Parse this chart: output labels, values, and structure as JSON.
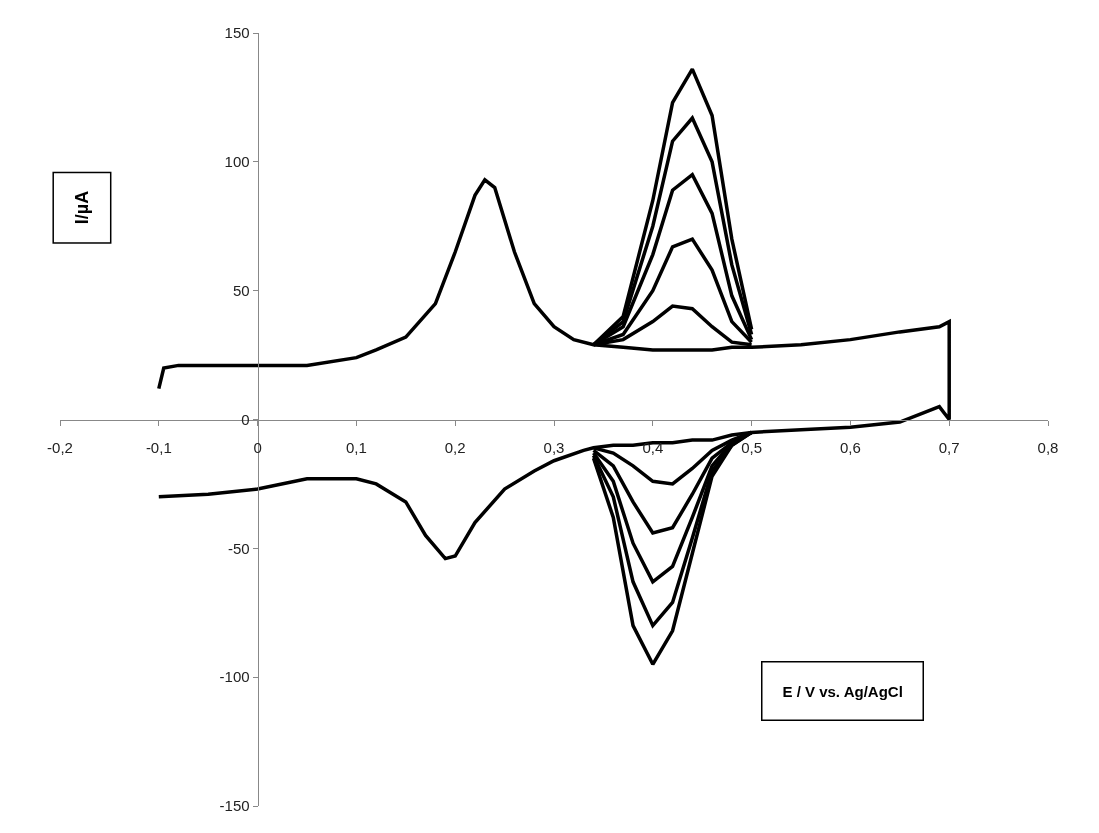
{
  "chart_data": {
    "type": "line",
    "xlabel": "E / V vs. Ag/AgCl",
    "ylabel": "I/µA",
    "xlim": [
      -0.2,
      0.8
    ],
    "xticks": [
      {
        "value": -0.2,
        "label": "-0,2"
      },
      {
        "value": -0.1,
        "label": "-0,1"
      },
      0,
      {
        "value": 0.1,
        "label": "0,1"
      },
      {
        "value": 0.2,
        "label": "0,2"
      },
      {
        "value": 0.3,
        "label": "0,3"
      },
      {
        "value": 0.4,
        "label": "0,4"
      },
      {
        "value": 0.5,
        "label": "0,5"
      },
      {
        "value": 0.6,
        "label": "0,6"
      },
      {
        "value": 0.7,
        "label": "0,7"
      },
      {
        "value": 0.8,
        "label": "0,8"
      }
    ],
    "ylim": [
      -150,
      150
    ],
    "yticks": [
      -150,
      -100,
      -50,
      0,
      50,
      100,
      150
    ],
    "marker": "none",
    "line_style": "solid",
    "series": [
      {
        "color": "#000000",
        "x": [
          -0.1,
          -0.095,
          -0.08,
          -0.05,
          0,
          0.05,
          0.1,
          0.12,
          0.15,
          0.18,
          0.2,
          0.22,
          0.23,
          0.24,
          0.26,
          0.28,
          0.3,
          0.32,
          0.34,
          0.37,
          0.4,
          0.42,
          0.44,
          0.46,
          0.48,
          0.5,
          0.55,
          0.6,
          0.65,
          0.69,
          0.7,
          0.7,
          0.69,
          0.67,
          0.65,
          0.6,
          0.55,
          0.5,
          0.48,
          0.46,
          0.44,
          0.42,
          0.4,
          0.38,
          0.36,
          0.34,
          0.33,
          0.3,
          0.28,
          0.25,
          0.22,
          0.2,
          0.19,
          0.17,
          0.15,
          0.12,
          0.1,
          0.05,
          0,
          -0.05,
          -0.1
        ],
        "values": [
          12,
          20,
          21,
          21,
          21,
          21,
          24,
          27,
          32,
          45,
          65,
          87,
          93,
          90,
          65,
          45,
          36,
          31,
          29,
          28,
          27,
          27,
          27,
          27,
          28,
          28,
          29,
          31,
          34,
          36,
          38,
          0,
          5,
          2,
          -1,
          -3,
          -4,
          -5,
          -6,
          -8,
          -8,
          -9,
          -9,
          -10,
          -10,
          -11,
          -12,
          -16,
          -20,
          -27,
          -40,
          -53,
          -54,
          -45,
          -32,
          -25,
          -23,
          -23,
          -27,
          -29,
          -30
        ]
      },
      {
        "color": "#000000",
        "x": [
          0.34,
          0.37,
          0.4,
          0.42,
          0.44,
          0.46,
          0.48,
          0.5
        ],
        "values": [
          29,
          31,
          38,
          44,
          43,
          36,
          30,
          29
        ]
      },
      {
        "color": "#000000",
        "x": [
          0.34,
          0.37,
          0.4,
          0.42,
          0.44,
          0.46,
          0.48,
          0.5
        ],
        "values": [
          29,
          33,
          50,
          67,
          70,
          58,
          38,
          30
        ]
      },
      {
        "color": "#000000",
        "x": [
          0.34,
          0.37,
          0.4,
          0.42,
          0.44,
          0.46,
          0.48,
          0.5
        ],
        "values": [
          29,
          36,
          64,
          89,
          95,
          80,
          48,
          31
        ]
      },
      {
        "color": "#000000",
        "x": [
          0.34,
          0.37,
          0.4,
          0.42,
          0.44,
          0.46,
          0.48,
          0.5
        ],
        "values": [
          29,
          38,
          75,
          108,
          117,
          100,
          60,
          33
        ]
      },
      {
        "color": "#000000",
        "x": [
          0.34,
          0.37,
          0.4,
          0.42,
          0.44,
          0.46,
          0.48,
          0.5
        ],
        "values": [
          29,
          40,
          85,
          123,
          136,
          118,
          70,
          35
        ]
      },
      {
        "color": "#000000",
        "x": [
          0.5,
          0.48,
          0.46,
          0.44,
          0.42,
          0.4,
          0.38,
          0.36,
          0.34
        ],
        "values": [
          -5,
          -8,
          -12,
          -19,
          -25,
          -24,
          -18,
          -13,
          -11
        ]
      },
      {
        "color": "#000000",
        "x": [
          0.5,
          0.48,
          0.46,
          0.44,
          0.42,
          0.4,
          0.38,
          0.36,
          0.34
        ],
        "values": [
          -5,
          -9,
          -15,
          -29,
          -42,
          -44,
          -32,
          -18,
          -12
        ]
      },
      {
        "color": "#000000",
        "x": [
          0.5,
          0.48,
          0.46,
          0.44,
          0.42,
          0.4,
          0.38,
          0.36,
          0.34
        ],
        "values": [
          -5,
          -9,
          -18,
          -38,
          -57,
          -63,
          -48,
          -24,
          -13
        ]
      },
      {
        "color": "#000000",
        "x": [
          0.5,
          0.48,
          0.46,
          0.44,
          0.42,
          0.4,
          0.38,
          0.36,
          0.34
        ],
        "values": [
          -5,
          -10,
          -20,
          -46,
          -71,
          -80,
          -63,
          -30,
          -14
        ]
      },
      {
        "color": "#000000",
        "x": [
          0.5,
          0.48,
          0.46,
          0.44,
          0.42,
          0.4,
          0.38,
          0.36,
          0.34
        ],
        "values": [
          -5,
          -10,
          -22,
          -52,
          -82,
          -95,
          -80,
          -38,
          -15
        ]
      }
    ]
  }
}
